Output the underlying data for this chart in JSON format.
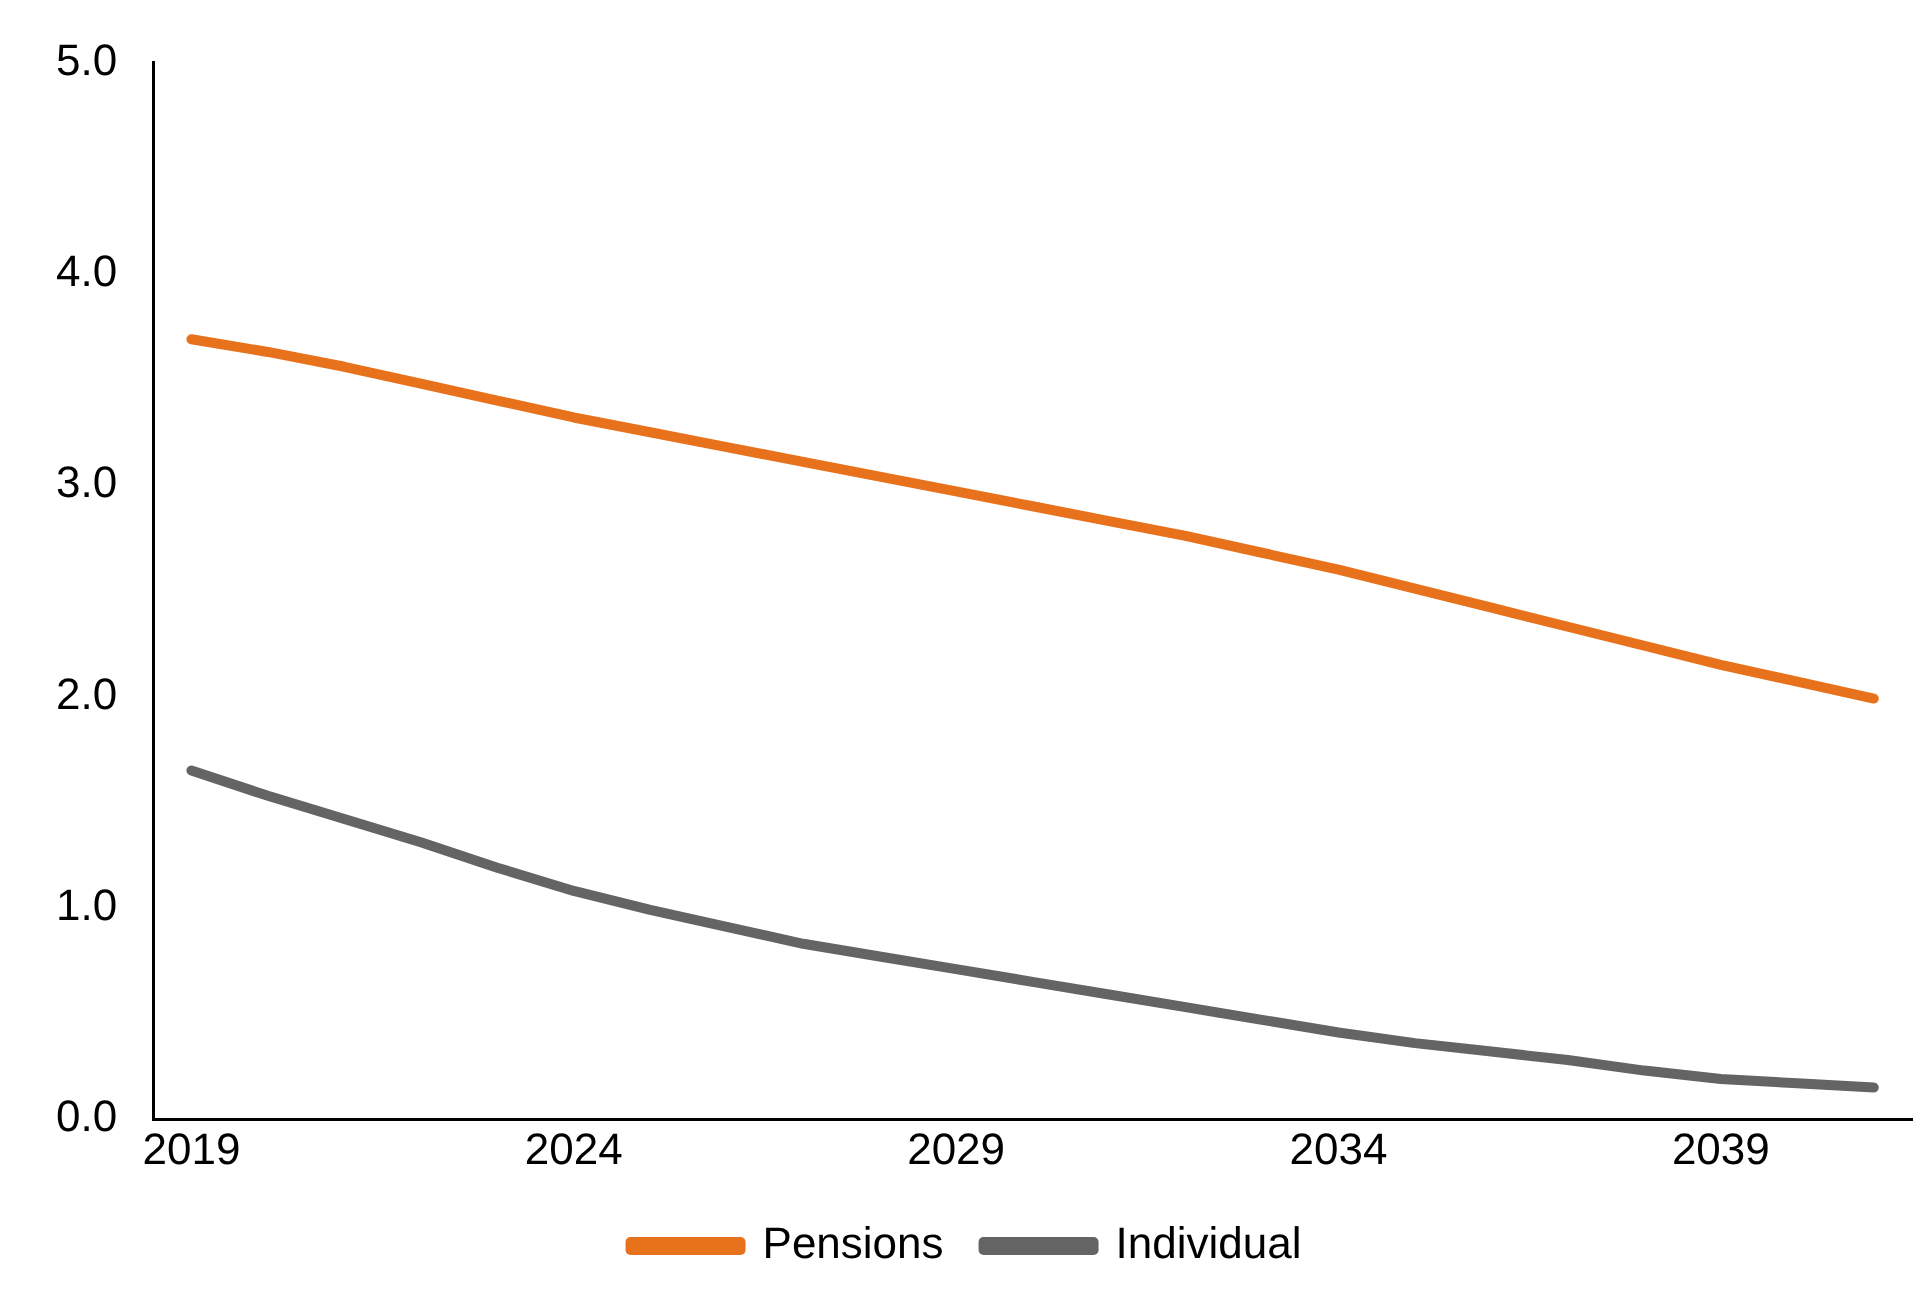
{
  "chart_data": {
    "type": "line",
    "x": [
      2019,
      2020,
      2021,
      2022,
      2023,
      2024,
      2025,
      2026,
      2027,
      2028,
      2029,
      2030,
      2031,
      2032,
      2033,
      2034,
      2035,
      2036,
      2037,
      2038,
      2039,
      2040,
      2041
    ],
    "series": [
      {
        "name": "Pensions",
        "color": "#e8711c",
        "values": [
          3.69,
          3.63,
          3.56,
          3.48,
          3.4,
          3.32,
          3.25,
          3.18,
          3.11,
          3.04,
          2.97,
          2.9,
          2.83,
          2.76,
          2.68,
          2.6,
          2.51,
          2.42,
          2.33,
          2.24,
          2.15,
          2.07,
          1.99
        ]
      },
      {
        "name": "Individual",
        "color": "#646464",
        "values": [
          1.65,
          1.53,
          1.42,
          1.31,
          1.19,
          1.08,
          0.99,
          0.91,
          0.83,
          0.77,
          0.71,
          0.65,
          0.59,
          0.53,
          0.47,
          0.41,
          0.36,
          0.32,
          0.28,
          0.23,
          0.19,
          0.17,
          0.15
        ]
      }
    ],
    "xlim": [
      2018.5,
      2041.5
    ],
    "xticks": [
      2019,
      2024,
      2029,
      2034,
      2039
    ],
    "ylim": [
      0,
      5
    ],
    "yticks": [
      {
        "value": 0,
        "label": "0.0"
      },
      {
        "value": 1,
        "label": "1.0"
      },
      {
        "value": 2,
        "label": "2.0"
      },
      {
        "value": 3,
        "label": "3.0"
      },
      {
        "value": 4,
        "label": "4.0"
      },
      {
        "value": 5,
        "label": "5.0"
      }
    ],
    "grid": false,
    "legend": "bottom",
    "marker": "none",
    "line_style": "solid"
  }
}
